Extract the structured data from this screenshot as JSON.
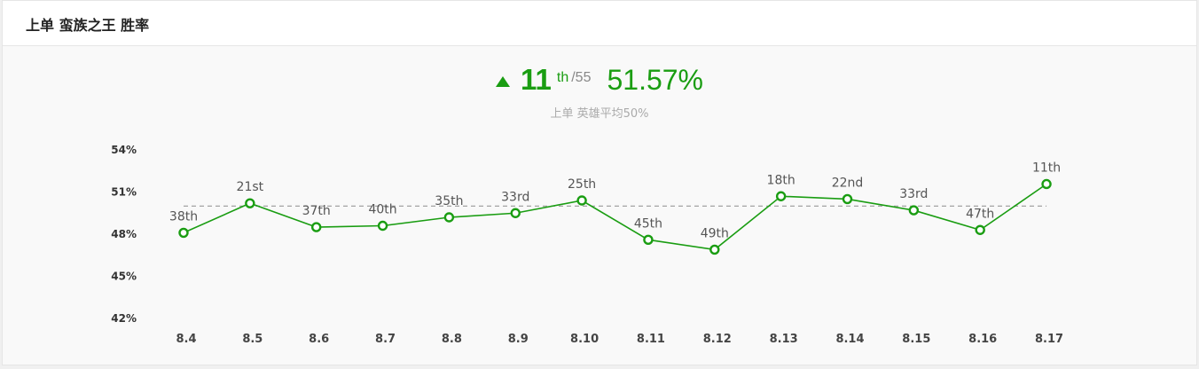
{
  "header": {
    "title": "上单 蛮族之王 胜率"
  },
  "summary": {
    "rank": "11",
    "rank_suffix": "th",
    "rank_total": "/55",
    "winrate": "51.57%",
    "average_text": "上单 英雄平均50%"
  },
  "colors": {
    "accent": "#1a9d12",
    "reference_line": "#999999"
  },
  "chart_data": {
    "type": "line",
    "categories": [
      "8.4",
      "8.5",
      "8.6",
      "8.7",
      "8.8",
      "8.9",
      "8.10",
      "8.11",
      "8.12",
      "8.13",
      "8.14",
      "8.15",
      "8.16",
      "8.17"
    ],
    "series": [
      {
        "values": [
          48.1,
          50.2,
          48.5,
          48.6,
          49.2,
          49.5,
          50.4,
          47.6,
          46.9,
          50.7,
          50.5,
          49.7,
          48.3,
          51.57
        ],
        "labels": [
          "38th",
          "21st",
          "37th",
          "40th",
          "35th",
          "33rd",
          "25th",
          "45th",
          "49th",
          "18th",
          "22nd",
          "33rd",
          "47th",
          "11th"
        ]
      }
    ],
    "reference_value": 50,
    "yticks": [
      "54%",
      "51%",
      "48%",
      "45%",
      "42%"
    ],
    "ylim": [
      42,
      54
    ],
    "grid": false
  }
}
